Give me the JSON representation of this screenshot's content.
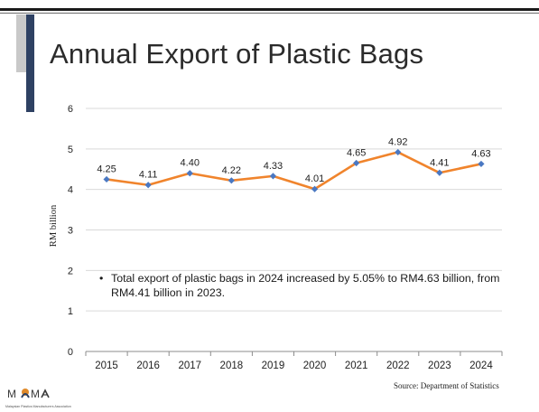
{
  "slide": {
    "title": "Annual Export of Plastic Bags",
    "source": "Source: Department of Statistics",
    "annotation": "Total export of plastic bags in 2024 increased by 5.05% to RM4.63 billion, from RM4.41 billion in 2023.",
    "logo_text": "MPMA",
    "logo_subtext": "Malaysian Plastics Manufacturers Association"
  },
  "chart_data": {
    "type": "line",
    "title": "",
    "xlabel": "",
    "ylabel": "RM billion",
    "categories": [
      "2015",
      "2016",
      "2017",
      "2018",
      "2019",
      "2020",
      "2021",
      "2022",
      "2023",
      "2024"
    ],
    "series": [
      {
        "values": [
          4.25,
          4.11,
          4.4,
          4.22,
          4.33,
          4.01,
          4.65,
          4.92,
          4.41,
          4.63
        ],
        "labels": [
          "4.25",
          "4.11",
          "4.40",
          "4.22",
          "4.33",
          "4.01",
          "4.65",
          "4.92",
          "4.41",
          "4.63"
        ]
      }
    ],
    "ylim": [
      0,
      6
    ],
    "yticks": [
      "0",
      "1",
      "2",
      "3",
      "4",
      "5",
      "6"
    ],
    "grid": true,
    "legend": "none",
    "colors": {
      "line": "#f0842c",
      "marker": "#4a78c2",
      "grid": "#d9d9d9",
      "axis": "#8c8c8c"
    }
  }
}
